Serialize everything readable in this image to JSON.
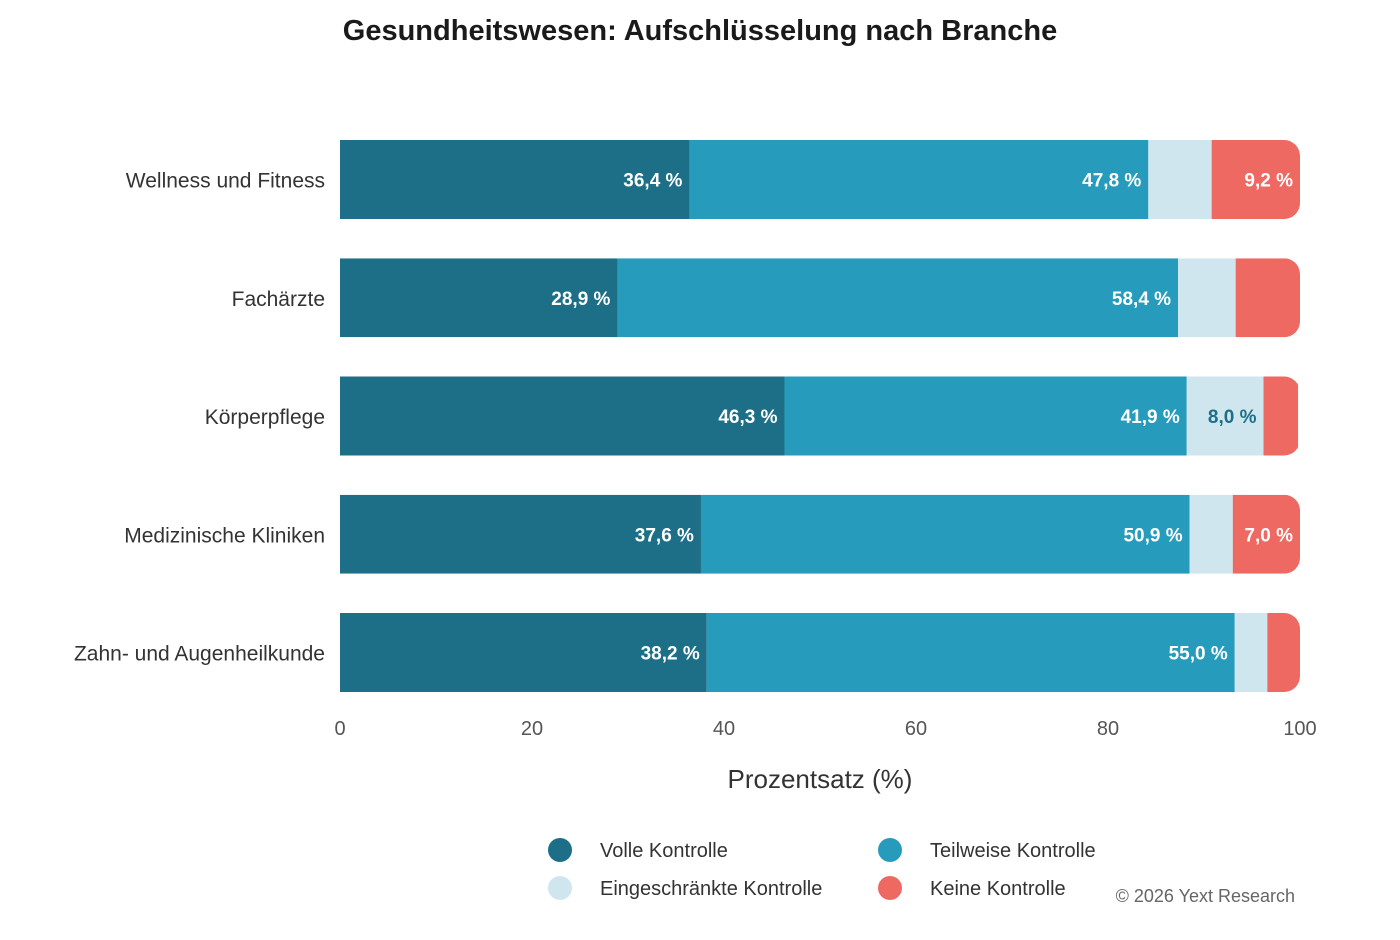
{
  "chart_data": {
    "type": "bar",
    "orientation": "horizontal",
    "stacked": true,
    "title": "Gesundheitswesen: Aufschlüsselung nach Branche",
    "xlabel": "Prozentsatz (%)",
    "ylabel": "",
    "xlim": [
      0,
      100
    ],
    "xticks": [
      "0",
      "20",
      "40",
      "60",
      "80",
      "100"
    ],
    "categories": [
      "Wellness und Fitness",
      "Fachärzte",
      "Körperpflege",
      "Medizinische Kliniken",
      "Zahn- und Augenheilkunde"
    ],
    "series": [
      {
        "name": "Volle Kontrolle",
        "color": "#1c6f87",
        "label_color": "#ffffff",
        "values": [
          36.4,
          28.9,
          46.3,
          37.6,
          38.2
        ],
        "labels": [
          "36,4 %",
          "28,9 %",
          "46,3 %",
          "37,6 %",
          "38,2 %"
        ]
      },
      {
        "name": "Teilweise Kontrolle",
        "color": "#269bbb",
        "label_color": "#ffffff",
        "values": [
          47.8,
          58.4,
          41.9,
          50.9,
          55.0
        ],
        "labels": [
          "47,8 %",
          "58,4 %",
          "41,9 %",
          "50,9 %",
          "55,0 %"
        ]
      },
      {
        "name": "Eingeschränkte Kontrolle",
        "color": "#d0e6ee",
        "label_color": "#1c6f87",
        "values": [
          6.6,
          6.0,
          8.0,
          4.5,
          3.4
        ],
        "labels": [
          "",
          "",
          "8,0 %",
          "",
          ""
        ]
      },
      {
        "name": "Keine Kontrolle",
        "color": "#ed6962",
        "label_color": "#ffffff",
        "values": [
          9.2,
          6.7,
          3.6,
          7.0,
          3.4
        ],
        "labels": [
          "9,2 %",
          "",
          "",
          "7,0 %",
          ""
        ]
      }
    ],
    "legend_position": "bottom",
    "grid": false
  },
  "credit": "© 2026 Yext Research"
}
